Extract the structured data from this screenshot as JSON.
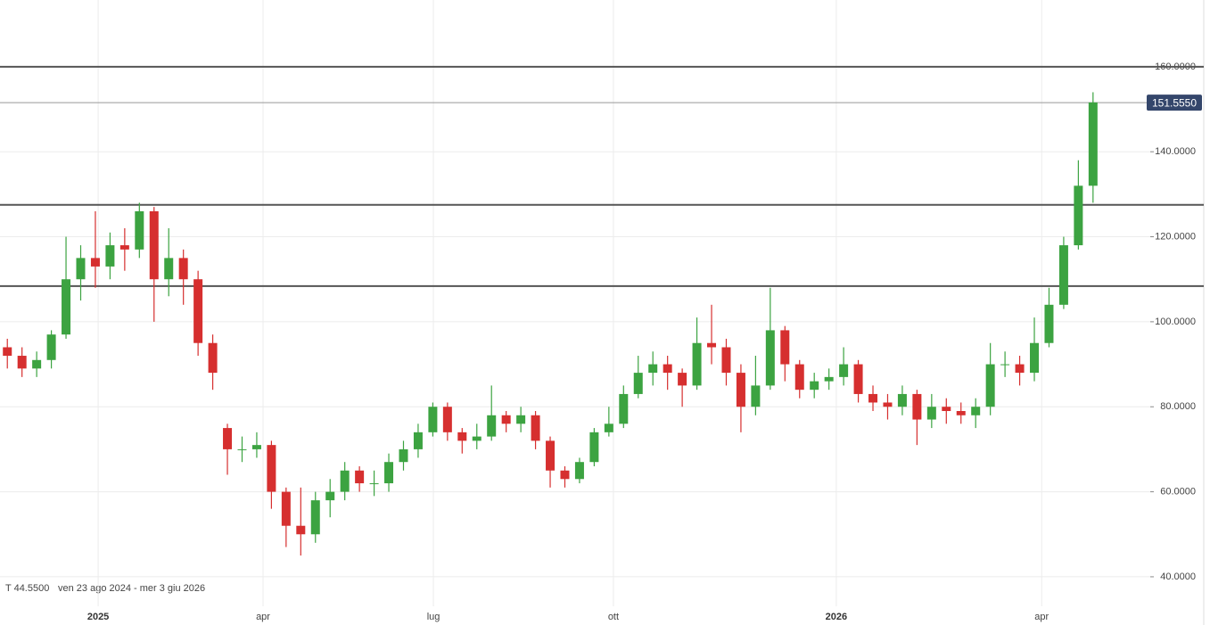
{
  "chart_data": {
    "type": "candlestick",
    "range_text": "ven 23 ago 2024 - mer 3 giu 2026",
    "cursor_text": "T 44.5500",
    "open": [
      94,
      92,
      89,
      91,
      97,
      110,
      115,
      113,
      118,
      117,
      126,
      110,
      115,
      110,
      95,
      75,
      70,
      70,
      71,
      60,
      52,
      50,
      58,
      60,
      65,
      62,
      62,
      67,
      70,
      74,
      80,
      74,
      72,
      73,
      78,
      76,
      78,
      72,
      65,
      63,
      67,
      74,
      76,
      83,
      88,
      90,
      88,
      85,
      95,
      94,
      88,
      80,
      85,
      98,
      90,
      84,
      86,
      87,
      90,
      83,
      81,
      80,
      83,
      77,
      80,
      79,
      78,
      80,
      90,
      90,
      88,
      95,
      104,
      118,
      132
    ],
    "high": [
      96,
      94,
      93,
      98,
      120,
      118,
      126,
      121,
      122,
      128,
      127,
      122,
      117,
      112,
      97,
      76,
      73,
      74,
      72,
      61,
      61,
      60,
      63,
      67,
      66,
      65,
      69,
      72,
      76,
      81,
      81,
      75,
      76,
      85,
      79,
      80,
      79,
      73,
      66,
      68,
      75,
      80,
      85,
      92,
      93,
      92,
      89,
      101,
      104,
      96,
      90,
      92,
      108,
      99,
      91,
      88,
      89,
      94,
      91,
      85,
      83,
      85,
      84,
      83,
      82,
      81,
      82,
      95,
      93,
      92,
      101,
      108,
      120,
      138,
      154
    ],
    "low": [
      89,
      87,
      87,
      89,
      96,
      105,
      108,
      110,
      112,
      115,
      100,
      106,
      104,
      92,
      84,
      64,
      67,
      68,
      56,
      47,
      45,
      48,
      54,
      58,
      60,
      59,
      60,
      65,
      68,
      73,
      72,
      69,
      70,
      72,
      74,
      74,
      70,
      61,
      61,
      62,
      66,
      73,
      75,
      82,
      85,
      84,
      80,
      84,
      90,
      85,
      74,
      78,
      84,
      86,
      82,
      82,
      84,
      85,
      81,
      79,
      77,
      78,
      71,
      75,
      76,
      76,
      75,
      78,
      87,
      85,
      86,
      94,
      103,
      117,
      128
    ],
    "close": [
      92,
      89,
      91,
      97,
      110,
      115,
      113,
      118,
      117,
      126,
      110,
      115,
      110,
      95,
      88,
      70,
      70,
      71,
      60,
      52,
      50,
      58,
      60,
      65,
      62,
      62,
      67,
      70,
      74,
      80,
      74,
      72,
      73,
      78,
      76,
      78,
      72,
      65,
      63,
      67,
      74,
      76,
      83,
      88,
      90,
      88,
      85,
      95,
      94,
      88,
      80,
      85,
      98,
      90,
      84,
      86,
      87,
      90,
      83,
      81,
      80,
      83,
      77,
      80,
      79,
      78,
      80,
      90,
      90,
      88,
      95,
      104,
      118,
      132,
      151.6
    ],
    "up_color": "#3ca341",
    "down_color": "#d62f2f",
    "xlim": [
      -0.5,
      77.9
    ],
    "xticks": [
      {
        "value": 6.19,
        "label": "2025"
      },
      {
        "value": 17.43,
        "label": "apr"
      },
      {
        "value": 29.04,
        "label": "lug"
      },
      {
        "value": 41.31,
        "label": "ott"
      },
      {
        "value": 56.5,
        "label": "2026"
      },
      {
        "value": 70.5,
        "label": "apr"
      }
    ],
    "ylim": [
      36,
      175.7
    ],
    "yticks": [
      {
        "value": 40,
        "label": "40.0000"
      },
      {
        "value": 60,
        "label": "60.0000"
      },
      {
        "value": 80,
        "label": "80.0000"
      },
      {
        "value": 100,
        "label": "100.0000"
      },
      {
        "value": 120,
        "label": "120.0000"
      },
      {
        "value": 140,
        "label": "140.0000"
      },
      {
        "value": 160,
        "label": "160.0000"
      }
    ],
    "levels": [
      160,
      127.5,
      108.4
    ],
    "last_price": {
      "value": 151.555,
      "label": "151.5550"
    },
    "grid": true
  }
}
